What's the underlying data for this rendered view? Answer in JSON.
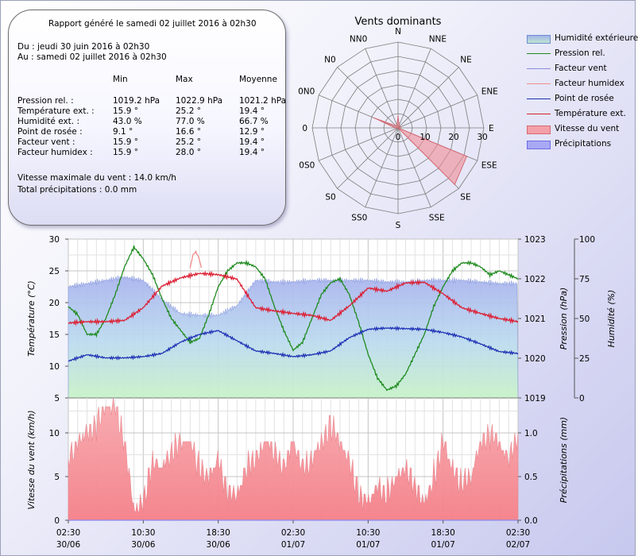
{
  "report": {
    "header": "Rapport généré le samedi 02 juillet 2016 à 02h30",
    "period_from": "Du : jeudi 30 juin 2016 à 02h30",
    "period_to": "Au : samedi 02 juillet 2016 à 02h30",
    "col_headers": [
      "Min",
      "Max",
      "Moyenne"
    ],
    "rows": [
      {
        "label": "Pression rel. :",
        "min": "1019.2 hPa",
        "max": "1022.9 hPa",
        "avg": "1021.2 hPa"
      },
      {
        "label": "Température ext. :",
        "min": "15.9 °",
        "max": "25.2 °",
        "avg": "19.4 °"
      },
      {
        "label": "Humidité ext. :",
        "min": "43.0 %",
        "max": "77.0 %",
        "avg": "66.7 %"
      },
      {
        "label": "Point de rosée :",
        "min": "9.1 °",
        "max": "16.6 °",
        "avg": "12.9 °"
      },
      {
        "label": "Facteur vent :",
        "min": "15.9 °",
        "max": "25.2 °",
        "avg": "19.4 °"
      },
      {
        "label": "Facteur humidex :",
        "min": "15.9 °",
        "max": "28.0 °",
        "avg": "19.4 °"
      }
    ],
    "max_wind": "Vitesse maximale du vent : 14.0 km/h",
    "total_rain": "Total précipitations : 0.0 mm"
  },
  "legend": [
    {
      "label": "Humidité extérieure",
      "kind": "area",
      "color": "#7f9fd8"
    },
    {
      "label": "Pression rel.",
      "kind": "line",
      "color": "#1e8a1e"
    },
    {
      "label": "Facteur vent",
      "kind": "line",
      "color": "#8c8cdc"
    },
    {
      "label": "Facteur humidex",
      "kind": "line",
      "color": "#f08c8c"
    },
    {
      "label": "Point de rosée",
      "kind": "line",
      "color": "#1e32b4"
    },
    {
      "label": "Température ext.",
      "kind": "line",
      "color": "#dc1e32"
    },
    {
      "label": "Vitesse du vent",
      "kind": "area",
      "color": "#f08c96"
    },
    {
      "label": "Précipitations",
      "kind": "area",
      "color": "#8c8cf0"
    }
  ],
  "chart_data": [
    {
      "type": "radar",
      "title": "Vents dominants",
      "directions": [
        "N",
        "NNE",
        "NE",
        "ENE",
        "E",
        "ESE",
        "SE",
        "SSE",
        "S",
        "SSO",
        "SO",
        "OSO",
        "O",
        "ONO",
        "NO",
        "NNO"
      ],
      "display_labels": [
        "N",
        "NNE",
        "NE",
        "ENE",
        "E",
        "ESE",
        "SE",
        "SSE",
        "S",
        "SS0",
        "S0",
        "0S0",
        "0",
        "0N0",
        "N0",
        "NN0"
      ],
      "radial_ticks": [
        0,
        10,
        20,
        30
      ],
      "rmax": 30,
      "values": [
        4,
        1,
        0,
        1,
        0,
        26,
        28,
        0,
        0,
        0,
        0,
        0,
        1,
        9,
        1,
        1
      ]
    },
    {
      "type": "line",
      "x_tick_labels": [
        [
          "02:30",
          "30/06"
        ],
        [
          "10:30",
          "30/06"
        ],
        [
          "18:30",
          "30/06"
        ],
        [
          "02:30",
          "01/07"
        ],
        [
          "10:30",
          "01/07"
        ],
        [
          "18:30",
          "01/07"
        ],
        [
          "02:30",
          "02/07"
        ]
      ],
      "xlim_hours": [
        0,
        48
      ],
      "ylabel_left": "Température (°C)",
      "ylim_left": [
        5,
        30
      ],
      "yticks_left": [
        5,
        10,
        15,
        20,
        25,
        30
      ],
      "ylabel_right1": "Pression (hPa)",
      "ylim_right1": [
        1019,
        1023
      ],
      "yticks_right1": [
        1019,
        1020,
        1021,
        1022,
        1023
      ],
      "ylabel_right2": "Humidité (%)",
      "ylim_right2": [
        0,
        100
      ],
      "yticks_right2": [
        0,
        25,
        50,
        75,
        100
      ],
      "series": [
        {
          "name": "Humidité extérieure",
          "axis": "humidity",
          "t": [
            0,
            2,
            4,
            6,
            8,
            10,
            12,
            14,
            16,
            18,
            20,
            22,
            24,
            26,
            28,
            30,
            32,
            34,
            36,
            38,
            40,
            42,
            44,
            46,
            48
          ],
          "values": [
            70,
            72,
            74,
            76,
            74,
            62,
            53,
            52,
            52,
            58,
            74,
            73,
            73,
            74,
            74,
            74,
            74,
            73,
            73,
            74,
            74,
            74,
            73,
            72,
            72
          ]
        },
        {
          "name": "Pression rel.",
          "axis": "pressure",
          "t": [
            0,
            1,
            2,
            3,
            4,
            5,
            6,
            7,
            8,
            9,
            10,
            11,
            12,
            13,
            14,
            15,
            16,
            17,
            18,
            19,
            20,
            21,
            22,
            23,
            24,
            25,
            26,
            27,
            28,
            29,
            30,
            31,
            32,
            33,
            34,
            35,
            36,
            37,
            38,
            39,
            40,
            41,
            42,
            43,
            44,
            45,
            46,
            47,
            48
          ],
          "values": [
            1021.3,
            1021.1,
            1020.6,
            1020.6,
            1021.0,
            1021.6,
            1022.3,
            1022.8,
            1022.5,
            1022.1,
            1021.5,
            1021.0,
            1020.7,
            1020.4,
            1020.5,
            1021.1,
            1021.8,
            1022.2,
            1022.4,
            1022.4,
            1022.3,
            1022.0,
            1021.3,
            1020.7,
            1020.2,
            1020.4,
            1021.0,
            1021.6,
            1021.9,
            1022.0,
            1021.6,
            1020.9,
            1020.1,
            1019.5,
            1019.2,
            1019.3,
            1019.6,
            1020.1,
            1020.6,
            1021.3,
            1021.8,
            1022.2,
            1022.4,
            1022.4,
            1022.3,
            1022.1,
            1022.2,
            1022.1,
            1022.0
          ]
        },
        {
          "name": "Point de rosée",
          "axis": "temperature",
          "t": [
            0,
            2,
            4,
            6,
            8,
            10,
            12,
            14,
            16,
            18,
            20,
            22,
            24,
            26,
            28,
            30,
            32,
            34,
            36,
            38,
            40,
            42,
            44,
            46,
            48
          ],
          "values": [
            10.8,
            11.8,
            11.3,
            11.3,
            11.5,
            12.0,
            13.8,
            15.0,
            15.6,
            14.0,
            12.4,
            12.0,
            11.5,
            11.8,
            12.4,
            14.5,
            15.8,
            16.0,
            15.9,
            15.8,
            15.3,
            14.6,
            13.5,
            12.3,
            12.0
          ]
        },
        {
          "name": "Température ext.",
          "axis": "temperature",
          "t": [
            0,
            2,
            4,
            6,
            8,
            10,
            12,
            14,
            16,
            18,
            20,
            22,
            24,
            26,
            28,
            30,
            32,
            34,
            36,
            38,
            40,
            42,
            44,
            46,
            48
          ],
          "values": [
            16.8,
            17.0,
            17.0,
            17.2,
            19.2,
            22.6,
            23.9,
            24.6,
            24.4,
            23.7,
            19.2,
            18.7,
            18.3,
            18.0,
            17.2,
            19.5,
            22.3,
            21.8,
            23.1,
            23.2,
            21.4,
            19.2,
            18.3,
            17.5,
            17.0
          ]
        },
        {
          "name": "Facteur humidex",
          "axis": "temperature",
          "t": [
            13.0,
            13.3,
            13.6,
            13.9,
            14.2
          ],
          "values": [
            25.5,
            27.5,
            28.0,
            27.2,
            25.5
          ]
        }
      ]
    },
    {
      "type": "area",
      "x_tick_labels": [
        [
          "02:30",
          "30/06"
        ],
        [
          "10:30",
          "30/06"
        ],
        [
          "18:30",
          "30/06"
        ],
        [
          "02:30",
          "01/07"
        ],
        [
          "10:30",
          "01/07"
        ],
        [
          "18:30",
          "01/07"
        ],
        [
          "02:30",
          "02/07"
        ]
      ],
      "xlim_hours": [
        0,
        48
      ],
      "ylabel_left": "Vitesse du vent (km/h)",
      "ylim_left": [
        0,
        14
      ],
      "yticks_left": [
        0,
        5,
        10
      ],
      "ylabel_right": "Précipitations (mm)",
      "ylim_right": [
        0,
        1.4
      ],
      "yticks_right": [
        0.0,
        0.5,
        1.0
      ],
      "series": [
        {
          "name": "Vitesse du vent",
          "t": [
            0,
            1,
            2,
            3,
            4,
            5,
            6,
            7,
            8,
            9,
            10,
            11,
            12,
            13,
            14,
            15,
            16,
            17,
            18,
            19,
            20,
            21,
            22,
            23,
            24,
            25,
            26,
            27,
            28,
            29,
            30,
            31,
            32,
            33,
            34,
            35,
            36,
            37,
            38,
            39,
            40,
            41,
            42,
            43,
            44,
            45,
            46,
            47,
            48
          ],
          "values": [
            7,
            9,
            10,
            11,
            13,
            13,
            9,
            1,
            2,
            7,
            6,
            8,
            9,
            9,
            6,
            5,
            7,
            3,
            3,
            6,
            7,
            9,
            8,
            6,
            9,
            6,
            7,
            9,
            11,
            9,
            7,
            3,
            2,
            4,
            3,
            5,
            6,
            4,
            2,
            5,
            9,
            6,
            4,
            5,
            9,
            10,
            9,
            7,
            10
          ]
        },
        {
          "name": "Précipitations",
          "t": [
            0,
            48
          ],
          "values": [
            0.0,
            0.0
          ]
        }
      ]
    }
  ]
}
